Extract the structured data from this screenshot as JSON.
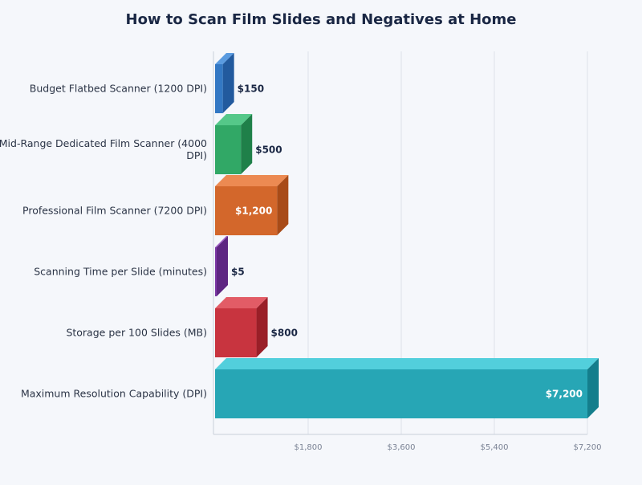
{
  "chart_data": {
    "type": "bar",
    "orientation": "horizontal",
    "title": "How to Scan Film Slides and Negatives at Home",
    "xlim": [
      0,
      7200
    ],
    "ticks": [
      1800,
      3600,
      5400,
      7200
    ],
    "tick_labels": [
      "$1,800",
      "$3,600",
      "$5,400",
      "$7,200"
    ],
    "grid": true,
    "categories": [
      "Budget Flatbed Scanner (1200 DPI)",
      "Mid-Range Dedicated Film Scanner (4000 DPI)",
      "Professional Film Scanner (7200 DPI)",
      "Scanning Time per Slide (minutes)",
      "Storage per 100 Slides (MB)",
      "Maximum Resolution Capability (DPI)"
    ],
    "category_lines": [
      [
        "Budget Flatbed Scanner (1200 DPI)"
      ],
      [
        "Mid-Range Dedicated Film Scanner (4000",
        "DPI)"
      ],
      [
        "Professional Film Scanner (7200 DPI)"
      ],
      [
        "Scanning Time per Slide (minutes)"
      ],
      [
        "Storage per 100 Slides (MB)"
      ],
      [
        "Maximum Resolution Capability (DPI)"
      ]
    ],
    "values": [
      150,
      500,
      1200,
      5,
      800,
      7200
    ],
    "value_labels": [
      "$150",
      "$500",
      "$1,200",
      "$5",
      "$800",
      "$7,200"
    ],
    "colors": [
      {
        "front": "#3378c4",
        "top": "#5a9be0",
        "side": "#225a9e"
      },
      {
        "front": "#31a866",
        "top": "#55c889",
        "side": "#1f8049"
      },
      {
        "front": "#d3672b",
        "top": "#ec8a52",
        "side": "#a84b18"
      },
      {
        "front": "#7d3aa6",
        "top": "#9d5cc6",
        "side": "#5e2682"
      },
      {
        "front": "#c8343f",
        "top": "#e25c66",
        "side": "#9a1f28"
      },
      {
        "front": "#27a6b5",
        "top": "#52cfdc",
        "side": "#147e8c"
      }
    ]
  }
}
